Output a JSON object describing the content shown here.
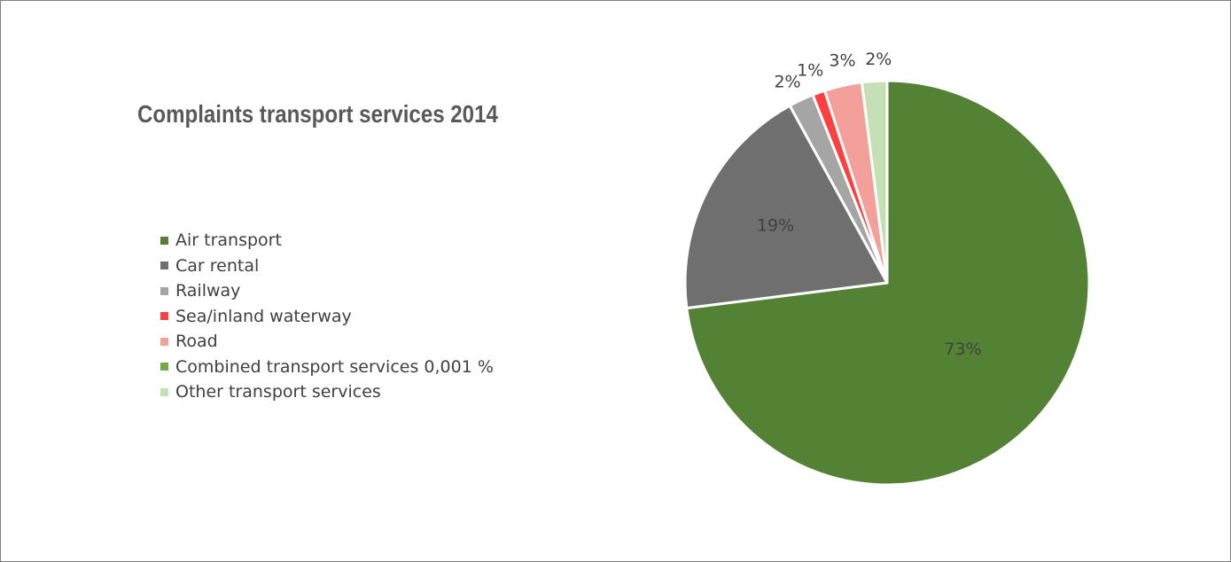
{
  "chart_data": {
    "type": "pie",
    "title": "Complaints transport services 2014",
    "legend_position": "left",
    "slices": [
      {
        "label": "Air transport",
        "value": 73.0,
        "display": "73%",
        "color": "#548235"
      },
      {
        "label": "Car rental",
        "value": 19.0,
        "display": "19%",
        "color": "#6f6f6f"
      },
      {
        "label": "Railway",
        "value": 2.0,
        "display": "2%",
        "color": "#a5a5a5"
      },
      {
        "label": "Sea/inland waterway",
        "value": 1.0,
        "display": "1%",
        "color": "#ff4040"
      },
      {
        "label": "Road",
        "value": 3.0,
        "display": "3%",
        "color": "#f4a09a"
      },
      {
        "label": "Combined transport services 0,001 %",
        "value": 0.001,
        "display": "",
        "color": "#70ad47"
      },
      {
        "label": "Other transport services",
        "value": 2.0,
        "display": "2%",
        "color": "#c5e0b4"
      }
    ]
  }
}
